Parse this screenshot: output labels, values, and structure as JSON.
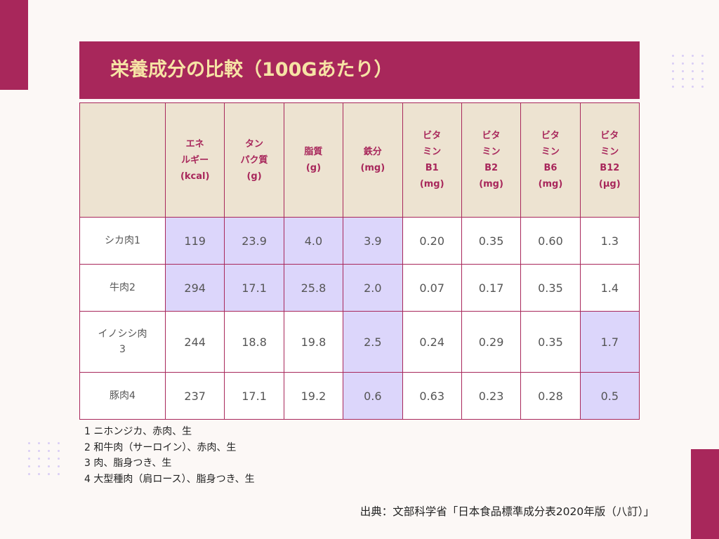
{
  "title": "栄養成分の比較（100Gあたり）",
  "colors": {
    "accent": "#a8275b",
    "header_bg": "#ede3d1",
    "highlight": "#dcd6fb",
    "background": "#fcf8f6"
  },
  "table": {
    "headers": [
      "",
      "エネ\nルギー\n(kcal)",
      "タン\nパク質\n(g)",
      "脂質\n(g)",
      "鉄分\n(mg)",
      "ビタ\nミン\nB1\n(mg)",
      "ビタ\nミン\nB2\n(mg)",
      "ビタ\nミン\nB6\n(mg)",
      "ビタ\nミン\nB12\n(μg)"
    ],
    "rows": [
      {
        "name": "シカ肉1",
        "values": [
          "119",
          "23.9",
          "4.0",
          "3.9",
          "0.20",
          "0.35",
          "0.60",
          "1.3"
        ],
        "highlight": [
          true,
          true,
          true,
          true,
          false,
          false,
          false,
          false
        ]
      },
      {
        "name": "牛肉2",
        "values": [
          "294",
          "17.1",
          "25.8",
          "2.0",
          "0.07",
          "0.17",
          "0.35",
          "1.4"
        ],
        "highlight": [
          true,
          true,
          true,
          true,
          false,
          false,
          false,
          false
        ]
      },
      {
        "name": "イノシシ肉\n3",
        "values": [
          "244",
          "18.8",
          "19.8",
          "2.5",
          "0.24",
          "0.29",
          "0.35",
          "1.7"
        ],
        "highlight": [
          false,
          false,
          false,
          true,
          false,
          false,
          false,
          true
        ]
      },
      {
        "name": "豚肉4",
        "values": [
          "237",
          "17.1",
          "19.2",
          "0.6",
          "0.63",
          "0.23",
          "0.28",
          "0.5"
        ],
        "highlight": [
          false,
          false,
          false,
          true,
          false,
          false,
          false,
          true
        ]
      }
    ]
  },
  "notes": [
    "1 ニホンジカ、赤肉、生",
    "2 和牛肉（サーロイン）、赤肉、生",
    "3 肉、脂身つき、生",
    "4 大型種肉（肩ロース）、脂身つき、生"
  ],
  "source": "出典：文部科学省「日本食品標準成分表2020年版（八訂）」"
}
